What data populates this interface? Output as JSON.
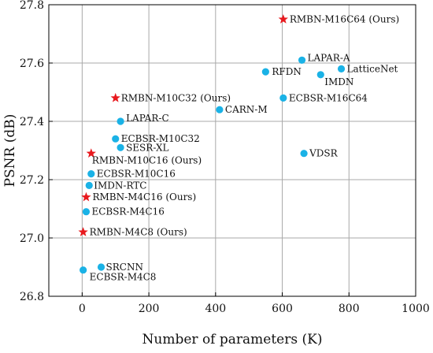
{
  "chart_data": {
    "type": "scatter",
    "xlabel": "Number of parameters (K)",
    "ylabel": "PSNR (dB)",
    "xlim": [
      -100,
      1000
    ],
    "ylim": [
      26.8,
      27.8
    ],
    "xticks": [
      0,
      200,
      400,
      600,
      800,
      1000
    ],
    "yticks": [
      26.8,
      27.0,
      27.2,
      27.4,
      27.6,
      27.8
    ],
    "xtick_labels": [
      "0",
      "200",
      "400",
      "600",
      "800",
      "1000"
    ],
    "ytick_labels": [
      "26.8",
      "27.0",
      "27.2",
      "27.4",
      "27.6",
      "27.8"
    ],
    "grid": true,
    "colors": {
      "circle": "#1ab2e6",
      "star": "#e8191e"
    },
    "series": [
      {
        "marker": "circle",
        "points": [
          {
            "label": "SRCNN",
            "x": 57,
            "y": 26.9
          },
          {
            "label": "ECBSR-M4C8",
            "x": 3,
            "y": 26.89
          },
          {
            "label": "ECBSR-M4C16",
            "x": 12,
            "y": 27.09
          },
          {
            "label": "IMDN-RTC",
            "x": 21,
            "y": 27.18
          },
          {
            "label": "ECBSR-M10C16",
            "x": 27,
            "y": 27.22
          },
          {
            "label": "SESR-XL",
            "x": 115,
            "y": 27.31
          },
          {
            "label": "ECBSR-M10C32",
            "x": 100,
            "y": 27.34
          },
          {
            "label": "LAPAR-C",
            "x": 115,
            "y": 27.4
          },
          {
            "label": "CARN-M",
            "x": 412,
            "y": 27.44
          },
          {
            "label": "RFDN",
            "x": 550,
            "y": 27.57
          },
          {
            "label": "LAPAR-A",
            "x": 659,
            "y": 27.61
          },
          {
            "label": "IMDN",
            "x": 715,
            "y": 27.56
          },
          {
            "label": "LatticeNet",
            "x": 777,
            "y": 27.58
          },
          {
            "label": "ECBSR-M16C64",
            "x": 603,
            "y": 27.48
          },
          {
            "label": "VDSR",
            "x": 665,
            "y": 27.29
          }
        ]
      },
      {
        "marker": "star",
        "points": [
          {
            "label": "RMBN-M4C8 (Ours)",
            "x": 3,
            "y": 27.02
          },
          {
            "label": "RMBN-M4C16 (Ours)",
            "x": 12,
            "y": 27.14
          },
          {
            "label": "RMBN-M10C16 (Ours)",
            "x": 27,
            "y": 27.29
          },
          {
            "label": "RMBN-M10C32 (Ours)",
            "x": 100,
            "y": 27.48
          },
          {
            "label": "RMBN-M16C64 (Ours)",
            "x": 603,
            "y": 27.75
          }
        ]
      }
    ]
  }
}
